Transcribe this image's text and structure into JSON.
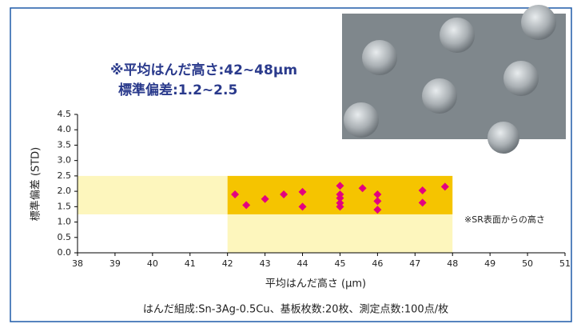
{
  "chart_data": {
    "type": "scatter",
    "annotations": [
      "※平均はんだ高さ:42~48μm",
      "標準偏差:1.2~2.5",
      "※SR表面からの高さ"
    ],
    "xlabel": "平均はんだ高さ (μm)",
    "ylabel": "標準偏差 (STD)",
    "caption": "はんだ組成:Sn-3Ag-0.5Cu、基板枚数:20枚、測定点数:100点/枚",
    "xlim": [
      38,
      51
    ],
    "ylim": [
      0,
      4.5
    ],
    "xticks": [
      38,
      39,
      40,
      41,
      42,
      43,
      44,
      45,
      46,
      47,
      48,
      49,
      50,
      51
    ],
    "yticks": [
      {
        "value": 0,
        "label": "0.0"
      },
      0.5,
      {
        "value": 1,
        "label": "1.0"
      },
      1.5,
      {
        "value": 2,
        "label": "2.0"
      },
      2.5,
      {
        "value": 3,
        "label": "3.0"
      },
      3.5,
      {
        "value": 4,
        "label": "4.0"
      },
      4.5
    ],
    "regions": [
      {
        "x": [
          38,
          42
        ],
        "y": [
          1.25,
          2.5
        ],
        "color": "#fdf6bd"
      },
      {
        "x": [
          42,
          48
        ],
        "y": [
          0,
          1.25
        ],
        "color": "#fdf6bd"
      },
      {
        "x": [
          42,
          48
        ],
        "y": [
          1.25,
          2.5
        ],
        "color": "#f5c400"
      }
    ],
    "series": [
      {
        "color": "#e4007f",
        "x": [
          42.2,
          42.5,
          43.0,
          43.5,
          44.0,
          44.0,
          45.0,
          45.0,
          45.0,
          45.0,
          45.0,
          45.6,
          46.0,
          46.0,
          46.0,
          47.2,
          47.2,
          47.8
        ],
        "values": [
          1.9,
          1.55,
          1.75,
          1.9,
          1.98,
          1.5,
          2.18,
          1.9,
          1.78,
          1.62,
          1.5,
          2.1,
          1.9,
          1.68,
          1.4,
          2.03,
          1.63,
          2.15
        ]
      }
    ]
  }
}
